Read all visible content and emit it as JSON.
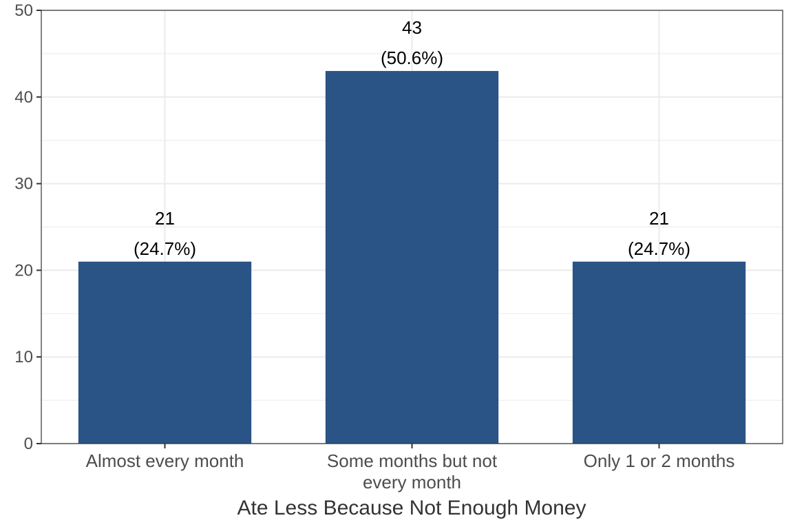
{
  "chart_data": {
    "type": "bar",
    "categories": [
      [
        "Almost every month"
      ],
      [
        "Some months but not",
        "every month"
      ],
      [
        "Only 1 or 2 months"
      ]
    ],
    "values": [
      21,
      43,
      21
    ],
    "data_labels": [
      [
        "21",
        "(24.7%)"
      ],
      [
        "43",
        "(50.6%)"
      ],
      [
        "21",
        "(24.7%)"
      ]
    ],
    "title": "",
    "xlabel": "Ate Less Because Not Enough Money",
    "ylabel": "",
    "ylim": [
      0,
      50
    ],
    "yticks": [
      "0",
      "10",
      "20",
      "30",
      "40",
      "50"
    ],
    "grid": true,
    "bar_color": "#2a5386",
    "grid_color": "#ebebeb",
    "panel_border_color": "#333333"
  }
}
